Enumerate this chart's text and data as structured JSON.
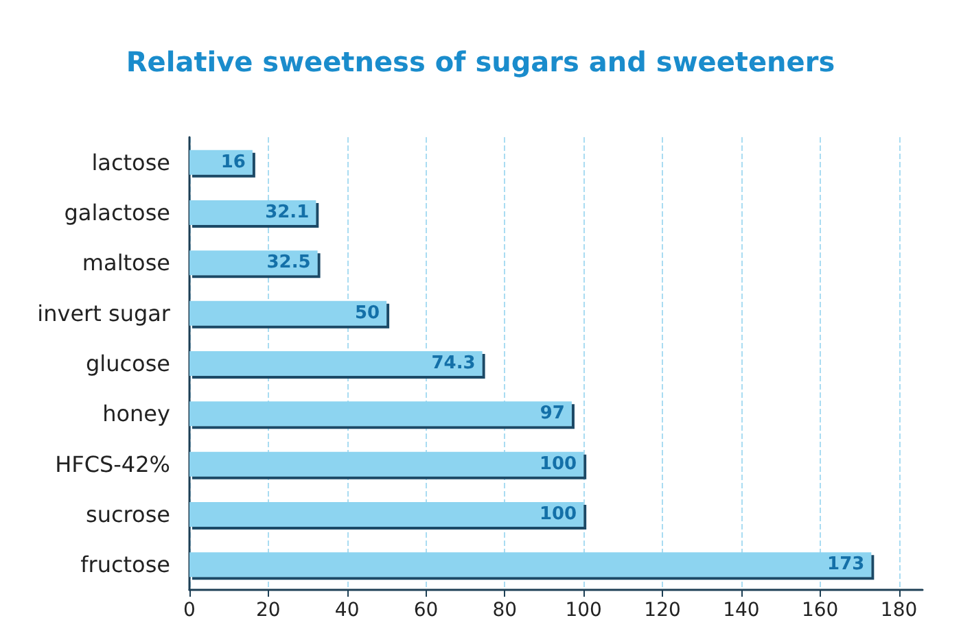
{
  "chart_data": {
    "type": "bar",
    "orientation": "horizontal",
    "title": "Relative sweetness of sugars and sweeteners",
    "categories": [
      "lactose",
      "galactose",
      "maltose",
      "invert sugar",
      "glucose",
      "honey",
      "HFCS-42%",
      "sucrose",
      "fructose"
    ],
    "values": [
      16,
      32.1,
      32.5,
      50,
      74.3,
      97,
      100,
      100,
      173
    ],
    "color": "#8dd4f0",
    "data_labels": true,
    "grid": "x",
    "xlim": [
      0,
      186
    ],
    "xticks": [
      0,
      20,
      40,
      60,
      80,
      100,
      120,
      140,
      160,
      180
    ]
  }
}
